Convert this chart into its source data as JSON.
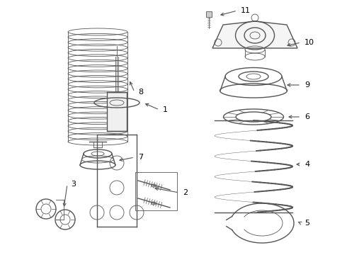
{
  "background_color": "#ffffff",
  "line_color": "#555555",
  "label_color": "#000000",
  "fig_w": 4.9,
  "fig_h": 3.6,
  "dpi": 100
}
